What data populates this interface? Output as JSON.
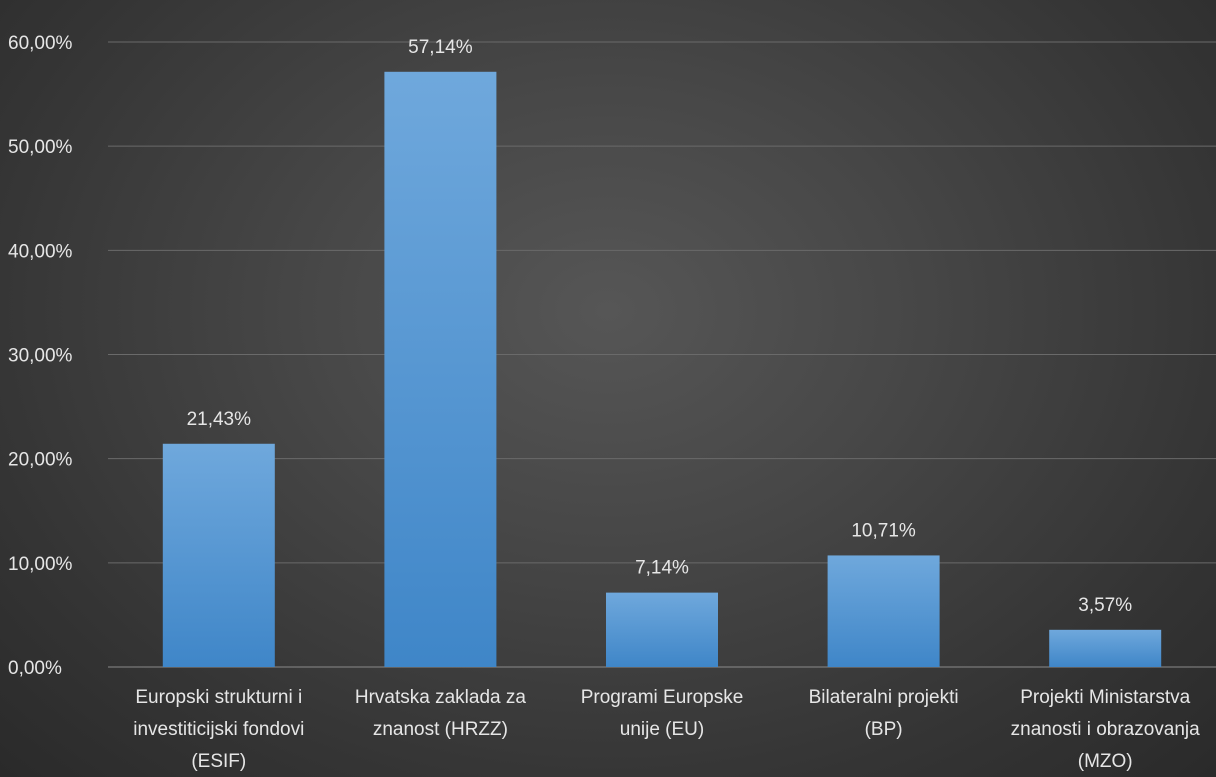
{
  "chart_data": {
    "type": "bar",
    "title": "",
    "xlabel": "",
    "ylabel": "",
    "ylim": [
      0,
      60
    ],
    "yticks": [
      "0,00%",
      "10,00%",
      "20,00%",
      "30,00%",
      "40,00%",
      "50,00%",
      "60,00%"
    ],
    "grid": true,
    "legend": "none",
    "categories": [
      [
        "Europski strukturni i",
        "investiticijski fondovi",
        "(ESIF)"
      ],
      [
        "Hrvatska zaklada za",
        "znanost (HRZZ)"
      ],
      [
        "Programi Europske",
        "unije (EU)"
      ],
      [
        "Bilateralni projekti",
        "(BP)"
      ],
      [
        "Projekti Ministarstva",
        "znanosti i obrazovanja",
        "(MZO)"
      ]
    ],
    "values": [
      21.43,
      57.14,
      7.14,
      10.71,
      3.57
    ],
    "data_labels": [
      "21,43%",
      "57,14%",
      "7,14%",
      "10,71%",
      "3,57%"
    ],
    "colors": {
      "bar_top": "#6fa8dc",
      "bar_bottom": "#3f86c8",
      "grid": "#6a6a6a",
      "text": "#e6e6e6"
    }
  }
}
